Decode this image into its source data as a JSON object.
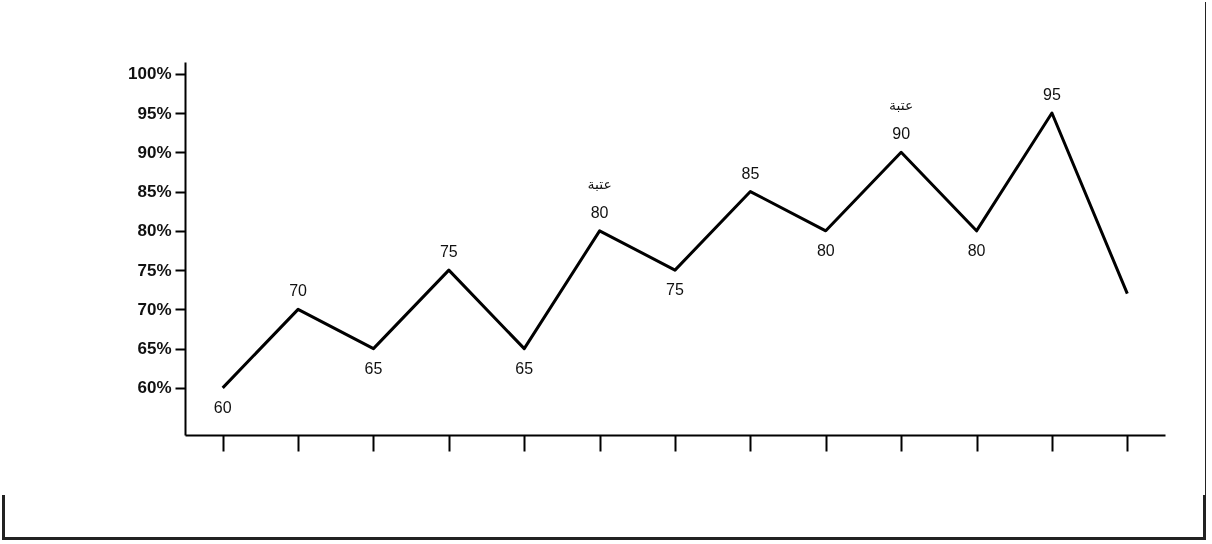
{
  "chart_data": {
    "type": "line",
    "categories": [
      null,
      null,
      null,
      null,
      null,
      null,
      null,
      null,
      null,
      null,
      null,
      null,
      null
    ],
    "values": [
      60,
      70,
      65,
      75,
      65,
      80,
      75,
      85,
      80,
      90,
      80,
      95,
      72
    ],
    "value_labels": [
      "60",
      "70",
      "65",
      "75",
      "65",
      "80",
      "75",
      "85",
      "80",
      "90",
      "80",
      "95",
      null
    ],
    "color": "#000000",
    "marker": "none",
    "line_style": "solid",
    "tick_labels": "y",
    "ylim": [
      54,
      101.5
    ],
    "yticks": [
      {
        "value": 60,
        "label": "60%"
      },
      {
        "value": 65,
        "label": "65%"
      },
      {
        "value": 70,
        "label": "70%"
      },
      {
        "value": 75,
        "label": "75%"
      },
      {
        "value": 80,
        "label": "80%"
      },
      {
        "value": 85,
        "label": "85%"
      },
      {
        "value": 90,
        "label": "90%"
      },
      {
        "value": 95,
        "label": "95%"
      },
      {
        "value": 100,
        "label": "100%"
      }
    ],
    "annotations": [
      {
        "text": "عتبة",
        "y": 80
      },
      {
        "text": "عتبة",
        "y": 90
      }
    ]
  }
}
